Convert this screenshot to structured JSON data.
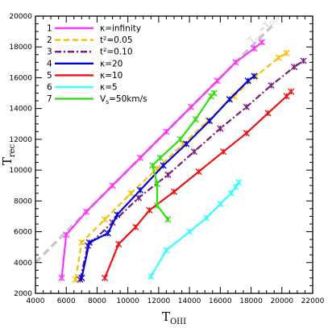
{
  "chart_data": {
    "type": "line",
    "title": "",
    "xlabel": "T",
    "xlabel_sub": "OIII",
    "ylabel": "T",
    "ylabel_sub": "rec",
    "xlim": [
      4000,
      22000
    ],
    "ylim": [
      2000,
      20000
    ],
    "xticks": [
      4000,
      6000,
      8000,
      10000,
      12000,
      14000,
      16000,
      18000,
      20000,
      22000
    ],
    "yticks": [
      2000,
      4000,
      6000,
      8000,
      10000,
      12000,
      14000,
      16000,
      18000,
      20000
    ],
    "grid": false,
    "legend_position": "top-left",
    "diagonal": {
      "label": "T",
      "label_sub1": "rec",
      "label_eq": "=T",
      "label_sub2": "OIII",
      "color": "#c8c8c8",
      "points": [
        [
          4000,
          4000
        ],
        [
          19500,
          19500
        ]
      ]
    },
    "series": [
      {
        "num": "1",
        "name": "κ=infinity",
        "color": "#ff33ff",
        "dash": "solid",
        "points": [
          [
            5700,
            3000
          ],
          [
            6000,
            5800
          ],
          [
            7300,
            7300
          ],
          [
            9000,
            9000
          ],
          [
            10800,
            10800
          ],
          [
            12500,
            12500
          ],
          [
            14100,
            14100
          ],
          [
            15800,
            15800
          ],
          [
            17000,
            17000
          ],
          [
            18200,
            17900
          ],
          [
            18700,
            18300
          ]
        ]
      },
      {
        "num": "2",
        "name": "t²=0.05",
        "color": "#f5c000",
        "dash": "dash",
        "points": [
          [
            6600,
            2900
          ],
          [
            7000,
            5300
          ],
          [
            8500,
            6800
          ],
          [
            10200,
            8500
          ],
          [
            11900,
            10100
          ],
          [
            13600,
            11700
          ],
          [
            15200,
            13200
          ],
          [
            16900,
            14800
          ],
          [
            18300,
            16100
          ],
          [
            19800,
            17300
          ],
          [
            20300,
            17600
          ]
        ]
      },
      {
        "num": "3",
        "name": "t²=0.10",
        "color": "#7a1a7a",
        "dash": "dashdot",
        "points": [
          [
            6900,
            2900
          ],
          [
            7400,
            5100
          ],
          [
            9000,
            6600
          ],
          [
            10700,
            8200
          ],
          [
            12600,
            9700
          ],
          [
            14300,
            11200
          ],
          [
            16000,
            12700
          ],
          [
            17700,
            14100
          ],
          [
            19300,
            15500
          ],
          [
            20800,
            16700
          ],
          [
            21400,
            17100
          ]
        ]
      },
      {
        "num": "4",
        "name": "κ=20",
        "color": "#0000dd",
        "dash": "solid",
        "points": [
          [
            7000,
            3000
          ],
          [
            7500,
            5300
          ],
          [
            8700,
            5900
          ],
          [
            9300,
            7100
          ],
          [
            10800,
            8700
          ],
          [
            12300,
            10300
          ],
          [
            13800,
            11700
          ],
          [
            15300,
            13200
          ],
          [
            16600,
            14600
          ],
          [
            17800,
            15800
          ],
          [
            18200,
            16100
          ]
        ]
      },
      {
        "num": "5",
        "name": "κ=10",
        "color": "#ee1111",
        "dash": "solid",
        "points": [
          [
            8500,
            3000
          ],
          [
            9400,
            5200
          ],
          [
            10500,
            6300
          ],
          [
            11400,
            7400
          ],
          [
            13000,
            8600
          ],
          [
            14600,
            9900
          ],
          [
            16200,
            11200
          ],
          [
            17700,
            12400
          ],
          [
            19100,
            13700
          ],
          [
            20300,
            14800
          ],
          [
            20600,
            15100
          ]
        ]
      },
      {
        "num": "6",
        "name": "κ=5",
        "color": "#33ffff",
        "dash": "solid",
        "points": [
          [
            11500,
            3100
          ],
          [
            12500,
            4800
          ],
          [
            14000,
            6000
          ],
          [
            15100,
            6900
          ],
          [
            16000,
            7800
          ],
          [
            16700,
            8500
          ],
          [
            17000,
            8900
          ],
          [
            17200,
            9200
          ]
        ]
      },
      {
        "num": "7",
        "name": "V_s=50km/s",
        "name_main": "V",
        "name_sub": "s",
        "name_rest": "=50km/s",
        "color": "#33dd11",
        "dash": "solid",
        "points": [
          [
            12600,
            6800
          ],
          [
            11900,
            7700
          ],
          [
            11900,
            9100
          ],
          [
            11600,
            10300
          ],
          [
            12100,
            10800
          ],
          [
            13400,
            12000
          ],
          [
            14400,
            13300
          ],
          [
            15400,
            14800
          ],
          [
            15600,
            15000
          ]
        ]
      }
    ]
  }
}
